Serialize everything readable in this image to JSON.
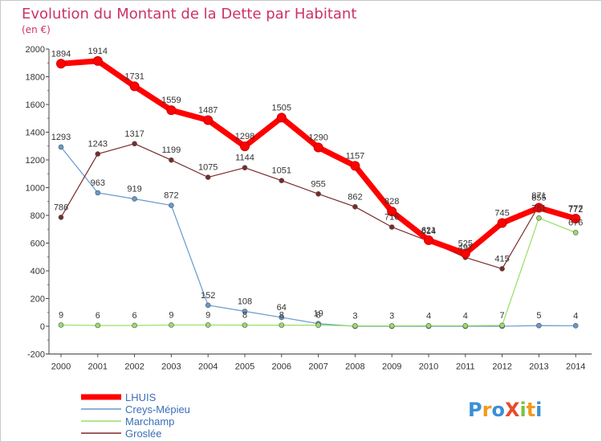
{
  "chart_data": {
    "type": "line",
    "title": "Evolution du Montant de la Dette par Habitant",
    "subtitle": "(en €)",
    "xlabel": "",
    "ylabel": "",
    "x": [
      2000,
      2001,
      2002,
      2003,
      2004,
      2005,
      2006,
      2007,
      2008,
      2009,
      2010,
      2011,
      2012,
      2013,
      2014
    ],
    "ylim": [
      -200,
      2000
    ],
    "yticks": [
      -200,
      0,
      200,
      400,
      600,
      800,
      1000,
      1200,
      1400,
      1600,
      1800,
      2000
    ],
    "grid": false,
    "legend": "bottom-left",
    "series": [
      {
        "name": "LHUIS",
        "color": "#ff0000",
        "values": [
          1894,
          1914,
          1731,
          1559,
          1487,
          1298,
          1505,
          1290,
          1157,
          828,
          621,
          525,
          745,
          855,
          777
        ]
      },
      {
        "name": "Creys-Mépieu",
        "color": "#6699cc",
        "values": [
          1293,
          963,
          919,
          872,
          152,
          108,
          64,
          19,
          0,
          0,
          0,
          0,
          0,
          5,
          4
        ]
      },
      {
        "name": "Marchamp",
        "color": "#99dd66",
        "values": [
          9,
          6,
          6,
          9,
          9,
          8,
          8,
          8,
          3,
          3,
          4,
          4,
          7,
          781,
          676
        ]
      },
      {
        "name": "Groslée",
        "color": "#7a2a2a",
        "values": [
          786,
          1243,
          1317,
          1199,
          1075,
          1144,
          1051,
          955,
          862,
          716,
          614,
          497,
          415,
          871,
          772
        ]
      }
    ],
    "data_labels": {
      "LHUIS": [
        "1894",
        "1914",
        "1731",
        "1559",
        "1487",
        "1298",
        "1505",
        "1290",
        "1157",
        "828",
        "621",
        "525",
        "745",
        "855",
        "777"
      ],
      "Creys-Mépieu": [
        "1293",
        "963",
        "919",
        "872",
        "152",
        "108",
        "64",
        "19",
        "",
        "",
        "",
        "",
        "",
        "5",
        "4"
      ],
      "Marchamp": [
        "9",
        "6",
        "6",
        "9",
        "9",
        "8",
        "8",
        "8",
        "3",
        "3",
        "4",
        "4",
        "7",
        "781",
        "676"
      ],
      "Groslée": [
        "786",
        "1243",
        "1317",
        "1199",
        "1075",
        "1144",
        "1051",
        "955",
        "862",
        "716",
        "614",
        "497",
        "415",
        "871",
        "772"
      ]
    }
  },
  "branding": {
    "logo_text": "ProXiti",
    "colors": [
      "#3a8fd8",
      "#f29a1a",
      "#3a8fd8",
      "#e84b2a",
      "#7cc242",
      "#f29a1a",
      "#3a8fd8"
    ]
  },
  "colors": {
    "title": "#cc3366",
    "axis": "#444444",
    "label": "#333333"
  }
}
